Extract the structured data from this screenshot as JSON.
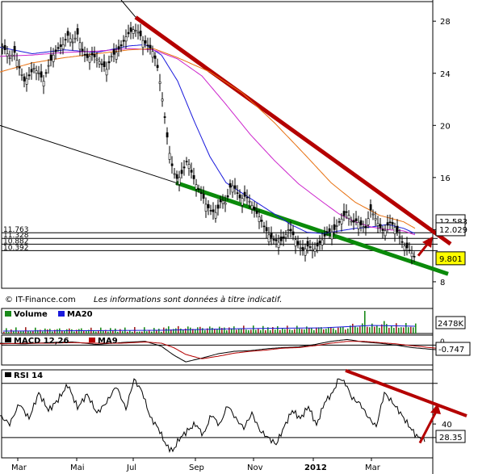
{
  "chart_data": [
    {
      "type": "line",
      "panel": "price",
      "subtype": "candlestick",
      "credit": "© IT-Finance.com",
      "disclaimer": "Les informations sont données à titre indicatif.",
      "y_ticks": [
        "28",
        "24",
        "20",
        "16",
        "12",
        "8"
      ],
      "ylim": [
        7.5,
        29.5
      ],
      "axis_side": "right",
      "grid": false,
      "series": [
        {
          "name": "Close",
          "color": "#000000",
          "x": [
            0,
            6,
            12,
            18,
            24,
            30,
            36,
            42,
            48,
            54,
            60,
            66,
            72,
            78,
            84,
            90,
            96,
            102,
            108,
            114,
            120,
            126,
            132,
            138,
            144,
            150,
            156,
            160,
            166,
            172,
            178,
            184,
            190,
            196,
            200,
            204,
            208,
            212,
            216,
            220,
            226,
            232,
            238,
            244,
            250,
            256,
            262,
            268,
            274,
            280,
            286,
            292,
            298,
            304,
            310,
            316,
            322,
            328,
            334,
            340,
            346,
            352,
            358,
            364,
            370,
            376,
            382,
            388,
            394,
            400,
            406,
            412,
            418,
            424,
            430,
            436,
            442,
            448,
            454,
            458,
            464,
            470,
            476,
            482,
            488,
            494,
            500,
            506,
            510,
            514
          ],
          "values": [
            26.3,
            25.8,
            25.2,
            25.6,
            24.4,
            23.4,
            23.8,
            24.4,
            24.0,
            23.4,
            24.6,
            25.4,
            25.9,
            26.2,
            26.9,
            26.4,
            27.0,
            25.7,
            25.2,
            25.4,
            25.1,
            24.7,
            24.3,
            25.3,
            25.6,
            26.1,
            26.8,
            27.1,
            27.4,
            27.1,
            26.4,
            26.1,
            25.6,
            24.2,
            22.5,
            20.6,
            18.6,
            17.1,
            16.3,
            15.8,
            16.4,
            17.4,
            16.2,
            15.3,
            14.7,
            13.8,
            13.4,
            13.3,
            14.3,
            14.0,
            15.5,
            15.1,
            14.3,
            14.6,
            14.1,
            13.4,
            12.9,
            12.1,
            11.5,
            11.2,
            11.0,
            11.4,
            12.1,
            11.5,
            10.7,
            10.4,
            10.8,
            10.4,
            10.8,
            11.3,
            11.9,
            11.8,
            12.4,
            12.9,
            13.4,
            12.5,
            12.7,
            12.3,
            12.1,
            13.6,
            13.0,
            12.2,
            11.8,
            12.6,
            12.3,
            11.6,
            10.8,
            10.5,
            10.2,
            9.8
          ]
        },
        {
          "name": "MA20",
          "color": "#1a1adc",
          "x": [
            0,
            40,
            80,
            120,
            160,
            180,
            200,
            220,
            240,
            260,
            280,
            300,
            320,
            340,
            360,
            380,
            400,
            420,
            440,
            460,
            480,
            500,
            514
          ],
          "values": [
            26.0,
            25.5,
            25.8,
            25.6,
            26.1,
            26.2,
            25.4,
            23.4,
            20.4,
            17.6,
            15.6,
            14.8,
            14.0,
            13.2,
            12.4,
            11.8,
            11.7,
            11.9,
            12.1,
            12.2,
            12.4,
            12.1,
            11.7
          ]
        },
        {
          "name": "MA50",
          "color": "#cc22cc",
          "x": [
            0,
            40,
            80,
            120,
            160,
            190,
            220,
            250,
            280,
            310,
            340,
            370,
            400,
            420,
            440,
            460,
            480,
            500,
            514
          ],
          "values": [
            25.3,
            25.4,
            25.6,
            25.7,
            25.9,
            25.8,
            25.1,
            23.8,
            21.6,
            19.3,
            17.3,
            15.5,
            14.1,
            13.2,
            12.6,
            12.2,
            12.0,
            11.9,
            11.6
          ]
        },
        {
          "name": "MA100",
          "color": "#e87010",
          "x": [
            0,
            40,
            80,
            120,
            160,
            190,
            220,
            260,
            300,
            340,
            380,
            410,
            440,
            470,
            500,
            514
          ],
          "values": [
            24.1,
            24.8,
            25.2,
            25.5,
            25.8,
            25.9,
            25.2,
            24.1,
            22.5,
            20.2,
            17.6,
            15.6,
            14.1,
            13.1,
            12.6,
            12.1
          ]
        }
      ],
      "trendlines": [
        {
          "name": "resistance",
          "color": "#b40000",
          "x": [
            168,
            558
          ],
          "values": [
            28.3,
            10.9
          ]
        },
        {
          "name": "support",
          "color": "#0a8a0a",
          "x": [
            218,
            555
          ],
          "values": [
            15.6,
            8.6
          ]
        },
        {
          "name": "long-term",
          "color": "#000000",
          "x": [
            0,
            218
          ],
          "values": [
            20.0,
            15.6
          ]
        },
        {
          "name": "arrow",
          "color": "#b40000",
          "x": [
            518,
            532
          ],
          "values": [
            10.0,
            11.1
          ]
        }
      ],
      "levels": [
        {
          "label": "11.763",
          "value": 11.763
        },
        {
          "label": "11.328",
          "value": 11.328
        },
        {
          "label": "10.882",
          "value": 10.882
        },
        {
          "label": "10.392",
          "value": 10.392
        }
      ],
      "value_badges": [
        {
          "label": "12.583",
          "value": 12.583,
          "color": "#e87010"
        },
        {
          "label": "12.029",
          "value": 12.029,
          "color": "#cc22cc"
        },
        {
          "label": "9.801",
          "value": 9.801,
          "color": "#000000",
          "highlight": "#ffff00"
        }
      ]
    },
    {
      "type": "bar",
      "panel": "volume",
      "legend": [
        {
          "name": "Volume",
          "color": "#1a8a1a"
        },
        {
          "name": "MA20",
          "color": "#1a1adc"
        }
      ],
      "y_label": "2478K",
      "y_max_label": "0",
      "spike_x": [
        452,
        476
      ],
      "spike_values": [
        1.0,
        0.55
      ]
    },
    {
      "type": "line",
      "panel": "macd",
      "legend": [
        {
          "name": "MACD 12,26",
          "color": "#000000"
        },
        {
          "name": "MA9",
          "color": "#b40000"
        }
      ],
      "zero_label": "0",
      "ylim": [
        -3.2,
        1.6
      ],
      "value_badge": "-0.747",
      "value": -0.747,
      "series": [
        {
          "name": "MACD 12,26",
          "color": "#000000",
          "x": [
            0,
            30,
            60,
            90,
            120,
            150,
            180,
            200,
            215,
            230,
            250,
            270,
            290,
            310,
            330,
            350,
            370,
            390,
            410,
            430,
            450,
            470,
            490,
            510,
            540
          ],
          "values": [
            0.3,
            0.2,
            0.4,
            0.5,
            0.1,
            0.4,
            0.6,
            -0.2,
            -1.6,
            -2.7,
            -2.1,
            -1.4,
            -1.0,
            -0.9,
            -0.6,
            -0.4,
            -0.3,
            0.1,
            0.6,
            0.9,
            0.5,
            0.3,
            0.0,
            -0.4,
            -0.747
          ]
        },
        {
          "name": "MA9",
          "color": "#b40000",
          "x": [
            0,
            30,
            60,
            90,
            120,
            150,
            180,
            200,
            215,
            230,
            250,
            270,
            290,
            310,
            330,
            350,
            370,
            390,
            410,
            430,
            450,
            470,
            490,
            510,
            540
          ],
          "values": [
            0.2,
            0.3,
            0.3,
            0.4,
            0.3,
            0.3,
            0.5,
            0.3,
            -0.4,
            -1.5,
            -2.2,
            -1.8,
            -1.3,
            -1.0,
            -0.8,
            -0.5,
            -0.4,
            -0.1,
            0.3,
            0.6,
            0.6,
            0.4,
            0.2,
            -0.1,
            -0.5
          ]
        }
      ]
    },
    {
      "type": "line",
      "panel": "rsi",
      "legend": [
        {
          "name": "RSI 14",
          "color": "#000000"
        }
      ],
      "ylim": [
        15,
        80
      ],
      "y_ticks": [
        "40"
      ],
      "value_badge": "28.35",
      "series": [
        {
          "name": "RSI 14",
          "color": "#000000",
          "x": [
            0,
            12,
            24,
            36,
            48,
            60,
            72,
            84,
            96,
            108,
            120,
            132,
            144,
            156,
            166,
            176,
            186,
            196,
            206,
            214,
            222,
            232,
            242,
            252,
            262,
            272,
            282,
            292,
            302,
            312,
            322,
            332,
            342,
            352,
            362,
            372,
            382,
            392,
            402,
            412,
            420,
            428,
            436,
            446,
            456,
            466,
            476,
            486,
            496,
            506,
            516,
            526
          ],
          "values": [
            46,
            40,
            55,
            44,
            63,
            50,
            58,
            69,
            52,
            62,
            48,
            56,
            68,
            51,
            73,
            64,
            45,
            37,
            24,
            20,
            29,
            35,
            40,
            32,
            47,
            39,
            54,
            44,
            37,
            48,
            35,
            30,
            25,
            38,
            50,
            44,
            53,
            39,
            56,
            63,
            74,
            70,
            59,
            55,
            45,
            38,
            63,
            56,
            48,
            39,
            31,
            28.35
          ]
        }
      ],
      "trendlines": [
        {
          "name": "rsi-resistance",
          "color": "#b40000",
          "x": [
            428,
            578
          ],
          "values": [
            79.5,
            46
          ]
        },
        {
          "name": "rsi-arrow",
          "color": "#b40000",
          "x": [
            520,
            540
          ],
          "values": [
            26,
            49
          ]
        }
      ]
    }
  ],
  "x_axis": {
    "labels": [
      "Mar",
      "Mai",
      "Jul",
      "Sep",
      "Nov",
      "2012",
      "Mar"
    ],
    "emphasis": "2012"
  }
}
